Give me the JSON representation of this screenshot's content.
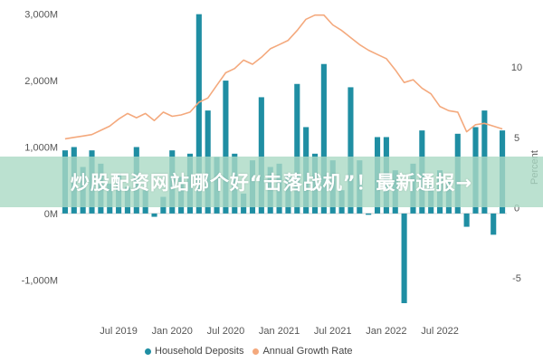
{
  "chart_data": {
    "type": "bar+line",
    "x_tick_labels": [
      "Jul 2019",
      "Jan 2020",
      "Jul 2020",
      "Jan 2021",
      "Jul 2021",
      "Jan 2022",
      "Jul 2022"
    ],
    "y_left_ticks": [
      "3,000M",
      "2,000M",
      "1,000M",
      "0M",
      "-1,000M"
    ],
    "y_right_ticks": [
      "10",
      "5",
      "0",
      "-5"
    ],
    "y_right_label": "Percent",
    "ylim_left": [
      -1500,
      3050
    ],
    "ylim_right": [
      -7.5,
      14
    ],
    "start_month": "2019-01",
    "series": [
      {
        "name": "Household Deposits",
        "kind": "bar",
        "color": "#1f8ea3",
        "values": [
          950,
          1000,
          700,
          950,
          750,
          450,
          600,
          400,
          1000,
          350,
          -50,
          250,
          950,
          550,
          900,
          3000,
          1550,
          850,
          2000,
          900,
          300,
          800,
          1750,
          700,
          750,
          600,
          1950,
          1300,
          900,
          2250,
          800,
          350,
          1900,
          800,
          -20,
          1150,
          1150,
          650,
          -1350,
          750,
          1250,
          450,
          650,
          500,
          1200,
          -200,
          1300,
          1550,
          -320,
          1250
        ]
      },
      {
        "name": "Annual Growth Rate",
        "kind": "line",
        "color": "#f4a97d",
        "values": [
          4.9,
          5.0,
          5.1,
          5.2,
          5.5,
          5.8,
          6.3,
          6.7,
          6.4,
          6.7,
          6.2,
          6.8,
          6.5,
          6.6,
          6.8,
          7.5,
          7.8,
          8.7,
          9.6,
          9.9,
          10.5,
          10.2,
          10.7,
          11.3,
          11.6,
          11.9,
          12.6,
          13.4,
          13.7,
          13.7,
          13.0,
          12.6,
          12.1,
          11.6,
          11.2,
          10.9,
          10.6,
          9.8,
          8.9,
          9.1,
          8.5,
          8.1,
          7.2,
          6.9,
          6.8,
          5.4,
          5.9,
          6.0,
          5.8,
          5.6
        ]
      }
    ]
  },
  "banner": {
    "text": "炒股配资网站哪个好“击落战机”！最新通报→"
  },
  "legend": {
    "items": [
      "Household Deposits",
      "Annual Growth Rate"
    ]
  }
}
